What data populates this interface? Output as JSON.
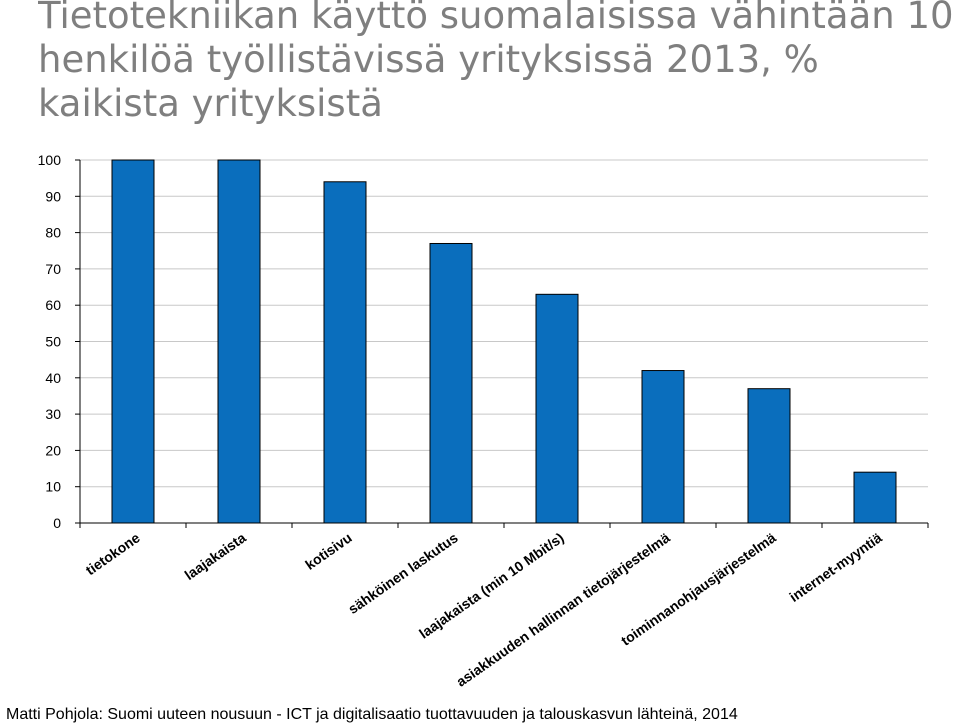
{
  "title_lines": [
    "Tietotekniikan käyttö suomalaisissa vähintään 10",
    "henkilöä työllistävissä yrityksissä 2013, %",
    "kaikista yrityksistä"
  ],
  "footer": "Matti Pohjola: Suomi uuteen nousuun - ICT ja digitalisaatio tuottavuuden ja talouskasvun lähteinä, 2014",
  "colors": {
    "bar": "#0a6ebd",
    "bar_outline": "#000000",
    "grid": "#c8c8c8",
    "title": "#7f7f7f"
  },
  "chart_data": {
    "type": "bar",
    "title": "Tietotekniikan käyttö suomalaisissa vähintään 10 henkilöä työllistävissä yrityksissä 2013, % kaikista yrityksistä",
    "xlabel": "",
    "ylabel": "",
    "ylim": [
      0,
      100
    ],
    "yticks": [
      0,
      10,
      20,
      30,
      40,
      50,
      60,
      70,
      80,
      90,
      100
    ],
    "grid": true,
    "legend": "none",
    "categories": [
      "tietokone",
      "laajakaista",
      "kotisivu",
      "sähköinen laskutus",
      "laajakaista (min 10 Mbit/s)",
      "asiakkuuden hallinnan tietojärjestelmä",
      "toiminnanohjausjärjestelmä",
      "internet-myyntiä"
    ],
    "values": [
      100,
      100,
      94,
      77,
      63,
      42,
      37,
      14
    ]
  }
}
